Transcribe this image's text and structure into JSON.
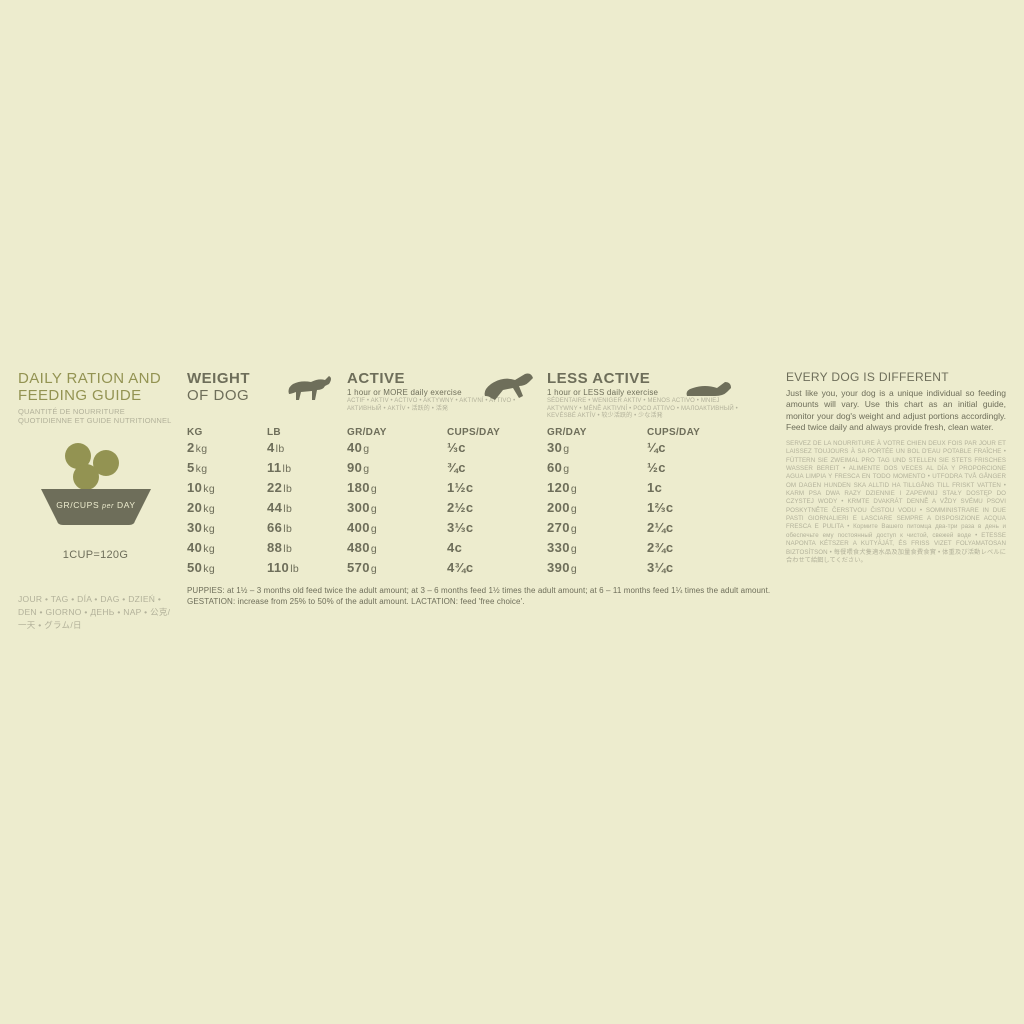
{
  "colors": {
    "background": "#edecce",
    "text": "#6e6e5a",
    "muted": "#b2b19a",
    "accent": "#939352",
    "bowl": "#6e6e5a",
    "kibble": "#939352"
  },
  "left": {
    "title": "DAILY RATION AND\nFEEDING GUIDE",
    "subtitle": "QUANTITÉ DE NOURRITURE\nQUOTIDIENNE ET GUIDE NUTRITIONNEL",
    "bowl_label": "GR/CUPS per DAY",
    "cup_eq": "1CUP=120G",
    "langs": "JOUR • TAG • DÍA • DAG • DZIEŃ • DEN • GIORNO • ДЕНЬ • NAP • 公克/一天 • グラム/日"
  },
  "headers": {
    "weight": {
      "title": "WEIGHT",
      "line2": "OF DOG"
    },
    "active": {
      "title": "ACTIVE",
      "sub": "1 hour or MORE daily exercise",
      "langs": "ACTIF • AKTIV • ACTIVO • AKTYWNY • AKTIVNÍ • ATTIVO • АКТИВНЫЙ • AKTÍV • 活跃的 • 活発"
    },
    "less": {
      "title": "LESS ACTIVE",
      "sub": "1 hour or LESS daily exercise",
      "langs": "SÉDENTAIRE • WENIGER AKTIV • MENOS ACTIVO • MNIEJ AKTYWNY • MÉNĚ AKTIVNÍ • POCO ATTIVO • МАЛОАКТИВНЫЙ • KEVÉSBÉ AKTÍV • 较少活跃的 • 少な活発"
    }
  },
  "subheads": {
    "kg": "KG",
    "lb": "LB",
    "gr": "GR/DAY",
    "cups": "CUPS/DAY"
  },
  "rows": [
    {
      "kg": "2",
      "lb": "4",
      "a_gr": "40",
      "a_c": "⅓c",
      "l_gr": "30",
      "l_c": "¼c"
    },
    {
      "kg": "5",
      "lb": "11",
      "a_gr": "90",
      "a_c": "¾c",
      "l_gr": "60",
      "l_c": "½c"
    },
    {
      "kg": "10",
      "lb": "22",
      "a_gr": "180",
      "a_c": "1½c",
      "l_gr": "120",
      "l_c": "1c"
    },
    {
      "kg": "20",
      "lb": "44",
      "a_gr": "300",
      "a_c": "2½c",
      "l_gr": "200",
      "l_c": "1⅔c"
    },
    {
      "kg": "30",
      "lb": "66",
      "a_gr": "400",
      "a_c": "3⅓c",
      "l_gr": "270",
      "l_c": "2¼c"
    },
    {
      "kg": "40",
      "lb": "88",
      "a_gr": "480",
      "a_c": "4c",
      "l_gr": "330",
      "l_c": "2¾c"
    },
    {
      "kg": "50",
      "lb": "110",
      "a_gr": "570",
      "a_c": "4¾c",
      "l_gr": "390",
      "l_c": "3¼c"
    }
  ],
  "footnote": "PUPPIES: at 1½ – 3 months old feed twice the adult amount; at 3 – 6 months feed 1½ times the adult amount; at 6 – 11 months feed 1¼ times the adult amount. GESTATION: increase from 25% to 50% of the adult amount. LACTATION: feed 'free choice'.",
  "right": {
    "title": "EVERY DOG IS DIFFERENT",
    "body": "Just like you, your dog is a unique individual so feeding amounts will vary. Use this chart as an initial guide, monitor your dog's weight and adjust portions accordingly. Feed twice daily and always provide fresh, clean water.",
    "langs": "SERVEZ DE LA NOURRITURE À VOTRE CHIEN DEUX FOIS PAR JOUR ET LAISSEZ TOUJOURS À SA PORTÉE UN BOL D'EAU POTABLE FRAÎCHE • FÜTTERN SIE ZWEIMAL PRO TAG UND STELLEN SIE STETS FRISCHES WASSER BEREIT • ALIMENTE DOS VECES AL DÍA Y PROPORCIONE AGUA LIMPIA Y FRESCA EN TODO MOMENTO • UTFODRA TVÅ GÅNGER OM DAGEN HUNDEN SKA ALLTID HA TILLGÅNG TILL FRISKT VATTEN • KARM PSA DWA RAZY DZIENNIE I ZAPEWNIJ STAŁY DOSTĘP DO CZYSTEJ WODY • KRMTE DVAKRÁT DENNĚ A VŽDY SVÉMU PSOVI POSKYTNĚTE ČERSTVOU ČISTOU VODU • SOMMINISTRARE IN DUE PASTI GIORNALIERI E LASCIARE SEMPRE A DISPOSIZIONE ACQUA FRESCA E PULITA • Кормите Вашего питомца два-три раза в день и обеспечьте ему постоянный доступ к чистой, свежей воде • ETESSE NAPONTA KÉTSZER A KUTYÁJÁT, ÉS FRISS VIZET FOLYAMATOSAN BIZTOSÍTSON • 每餐喂食犬隻適水品及加量食費食實 • 体重及び活動レベルに合わせて給餌してください。"
  }
}
